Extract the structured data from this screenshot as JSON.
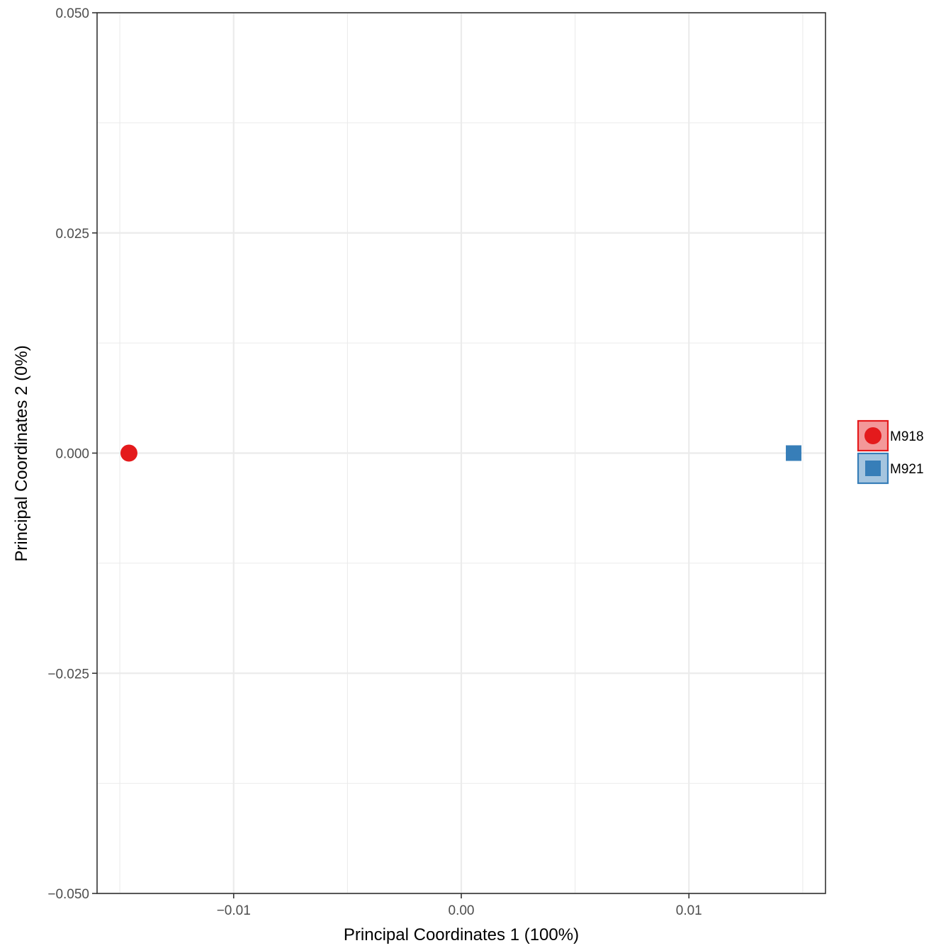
{
  "chart_data": {
    "type": "scatter",
    "title": "",
    "xlabel": "Principal Coordinates 1 (100%)",
    "ylabel": "Principal Coordinates 2 (0%)",
    "xlim": [
      -0.016,
      0.016
    ],
    "ylim": [
      -0.05,
      0.05
    ],
    "x_major_ticks": [
      -0.01,
      0.0,
      0.01
    ],
    "x_minor_ticks": [
      -0.015,
      -0.005,
      0.005,
      0.015
    ],
    "x_tick_labels": [
      "−0.01",
      "0.00",
      "0.01"
    ],
    "y_major_ticks": [
      -0.05,
      -0.025,
      0.0,
      0.025,
      0.05
    ],
    "y_minor_ticks": [
      -0.0375,
      -0.0125,
      0.0125,
      0.0375
    ],
    "y_tick_labels": [
      "−0.050",
      "−0.025",
      "0.000",
      "0.025",
      "0.050"
    ],
    "grid": true,
    "legend_position": "right",
    "series": [
      {
        "name": "M918",
        "color": "#e41a1c",
        "shape": "circle",
        "x": [
          -0.0146
        ],
        "y": [
          0.0
        ]
      },
      {
        "name": "M921",
        "color": "#377eb8",
        "shape": "square",
        "x": [
          0.0146
        ],
        "y": [
          0.0
        ]
      }
    ]
  }
}
